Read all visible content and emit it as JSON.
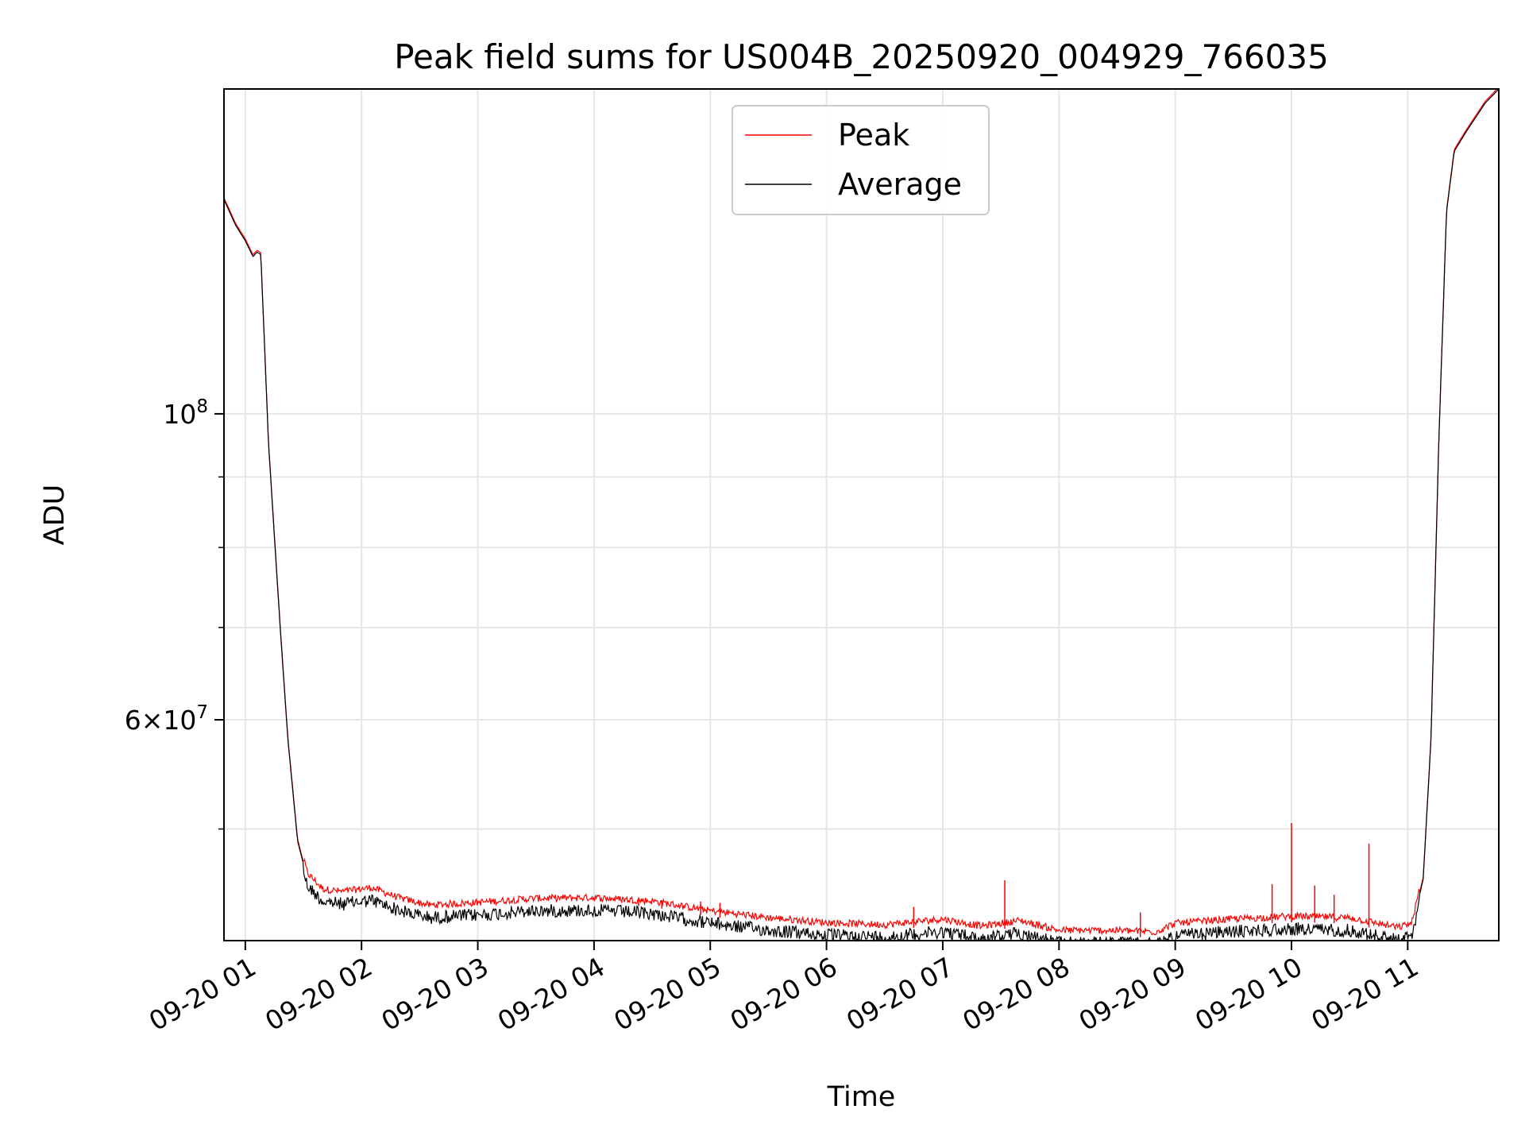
{
  "chart_data": {
    "type": "line",
    "title": "Peak field sums for US004B_20250920_004929_766035",
    "xlabel": "Time",
    "ylabel": "ADU",
    "yscale": "log",
    "xlim": [
      "2025-09-20T00:49",
      "2025-09-20T11:47"
    ],
    "ylim": [
      41500000,
      172000000
    ],
    "grid": true,
    "legend": {
      "placement": "top-center",
      "entries": [
        "Peak",
        "Average"
      ]
    },
    "x_ticks": [
      "09-20 01",
      "09-20 02",
      "09-20 03",
      "09-20 04",
      "09-20 05",
      "09-20 06",
      "09-20 07",
      "09-20 08",
      "09-20 09",
      "09-20 10",
      "09-20 11"
    ],
    "x_tick_times": [
      "2025-09-20T01:00",
      "2025-09-20T02:00",
      "2025-09-20T03:00",
      "2025-09-20T04:00",
      "2025-09-20T05:00",
      "2025-09-20T06:00",
      "2025-09-20T07:00",
      "2025-09-20T08:00",
      "2025-09-20T09:00",
      "2025-09-20T10:00",
      "2025-09-20T11:00"
    ],
    "y_ticks_major": [
      {
        "value": 100000000,
        "base": "10",
        "exp": "8",
        "mult": ""
      },
      {
        "value": 60000000,
        "base": "10",
        "exp": "7",
        "mult": "6×"
      }
    ],
    "y_ticks_minor": [
      50000000,
      70000000,
      80000000,
      90000000
    ],
    "series": [
      {
        "name": "Average",
        "color": "#000000",
        "points": [
          [
            "2025-09-20T00:49",
            143000000
          ],
          [
            "2025-09-20T00:55",
            137000000
          ],
          [
            "2025-09-20T01:00",
            133500000
          ],
          [
            "2025-09-20T01:04",
            130000000
          ],
          [
            "2025-09-20T01:06",
            131000000
          ],
          [
            "2025-09-20T01:08",
            130500000
          ],
          [
            "2025-09-20T01:12",
            95000000
          ],
          [
            "2025-09-20T01:18",
            70000000
          ],
          [
            "2025-09-20T01:22",
            58000000
          ],
          [
            "2025-09-20T01:27",
            49000000
          ],
          [
            "2025-09-20T01:32",
            46000000
          ],
          [
            "2025-09-20T01:40",
            44800000
          ],
          [
            "2025-09-20T01:50",
            44600000
          ],
          [
            "2025-09-20T02:05",
            44900000
          ],
          [
            "2025-09-20T02:20",
            44100000
          ],
          [
            "2025-09-20T02:35",
            43600000
          ],
          [
            "2025-09-20T03:00",
            43800000
          ],
          [
            "2025-09-20T03:30",
            44100000
          ],
          [
            "2025-09-20T04:00",
            44150000
          ],
          [
            "2025-09-20T04:30",
            43900000
          ],
          [
            "2025-09-20T05:00",
            43200000
          ],
          [
            "2025-09-20T05:30",
            42700000
          ],
          [
            "2025-09-20T06:00",
            42350000
          ],
          [
            "2025-09-20T06:30",
            42200000
          ],
          [
            "2025-09-20T07:00",
            42600000
          ],
          [
            "2025-09-20T07:20",
            42100000
          ],
          [
            "2025-09-20T07:40",
            42500000
          ],
          [
            "2025-09-20T08:00",
            41800000
          ],
          [
            "2025-09-20T08:30",
            41800000
          ],
          [
            "2025-09-20T08:50",
            41700000
          ],
          [
            "2025-09-20T09:00",
            42300000
          ],
          [
            "2025-09-20T09:30",
            42600000
          ],
          [
            "2025-09-20T10:00",
            42800000
          ],
          [
            "2025-09-20T10:30",
            42700000
          ],
          [
            "2025-09-20T10:55",
            42000000
          ],
          [
            "2025-09-20T11:02",
            42300000
          ],
          [
            "2025-09-20T11:08",
            46000000
          ],
          [
            "2025-09-20T11:12",
            58000000
          ],
          [
            "2025-09-20T11:16",
            95000000
          ],
          [
            "2025-09-20T11:20",
            140000000
          ],
          [
            "2025-09-20T11:24",
            155000000
          ],
          [
            "2025-09-20T11:30",
            160000000
          ],
          [
            "2025-09-20T11:40",
            168000000
          ],
          [
            "2025-09-20T11:47",
            172000000
          ]
        ]
      },
      {
        "name": "Peak",
        "color": "#ff0000",
        "spikes": [
          [
            "2025-09-20T04:23",
            44600000
          ],
          [
            "2025-09-20T04:35",
            44400000
          ],
          [
            "2025-09-20T04:55",
            44300000
          ],
          [
            "2025-09-20T05:05",
            44200000
          ],
          [
            "2025-09-20T06:45",
            43900000
          ],
          [
            "2025-09-20T07:32",
            45900000
          ],
          [
            "2025-09-20T08:42",
            43500000
          ],
          [
            "2025-09-20T09:50",
            45600000
          ],
          [
            "2025-09-20T10:00",
            50500000
          ],
          [
            "2025-09-20T10:12",
            45500000
          ],
          [
            "2025-09-20T10:22",
            44800000
          ],
          [
            "2025-09-20T10:40",
            48800000
          ]
        ]
      }
    ]
  }
}
